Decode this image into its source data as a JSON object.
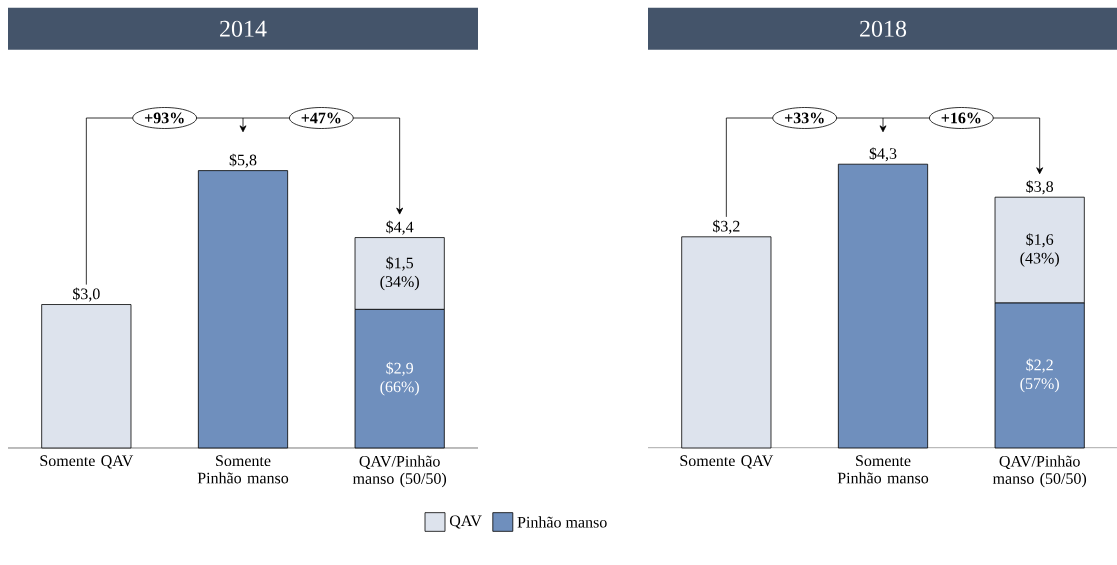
{
  "chart_data": [
    {
      "type": "bar",
      "title": "2014",
      "stacked": true,
      "categories": [
        "Somente QAV",
        "Somente Pinhão manso",
        "QAV/Pinhão manso (50/50)"
      ],
      "series": [
        {
          "name": "Pinhão manso",
          "color": "#6f8fbd",
          "values": [
            null,
            5.8,
            2.9
          ],
          "value_labels": [
            null,
            null,
            "$2,9 (66%)"
          ]
        },
        {
          "name": "QAV",
          "color": "#dde3ed",
          "values": [
            3.0,
            null,
            1.5
          ],
          "value_labels": [
            null,
            null,
            "$1,5 (34%)"
          ]
        }
      ],
      "totals": [
        "$3,0",
        "$5,8",
        "$4,4"
      ],
      "annotations": [
        "+93%",
        "+47%"
      ],
      "ylim": [
        0,
        6.9
      ],
      "legend": "bottom"
    },
    {
      "type": "bar",
      "title": "2018",
      "stacked": true,
      "categories": [
        "Somente QAV",
        "Somente Pinhão manso",
        "QAV/Pinhão manso (50/50)"
      ],
      "series": [
        {
          "color": "#6f8fbd",
          "values": [
            null,
            4.3,
            2.2
          ],
          "value_labels": [
            null,
            null,
            "$2,2 (57%)"
          ]
        },
        {
          "color": "#dde3ed",
          "values": [
            3.2,
            null,
            1.6
          ],
          "value_labels": [
            null,
            null,
            "$1,6 (43%)"
          ]
        }
      ],
      "totals": [
        "$3,2",
        "$4,3",
        "$3,8"
      ],
      "annotations": [
        "+33%",
        "+16%"
      ],
      "ylim": [
        0,
        5.0
      ]
    }
  ]
}
